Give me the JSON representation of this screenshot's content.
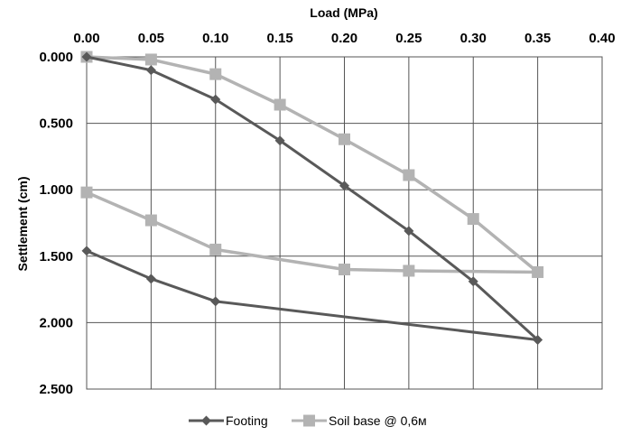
{
  "chart_data": {
    "type": "line",
    "xlabel": "Load (MPa)",
    "ylabel": "Settlement (cm)",
    "x_ticks": [
      "0.00",
      "0.05",
      "0.10",
      "0.15",
      "0.20",
      "0.25",
      "0.30",
      "0.35",
      "0.40"
    ],
    "y_ticks": [
      "0.000",
      "0.500",
      "1.000",
      "1.500",
      "2.000",
      "2.500"
    ],
    "xlim": [
      0,
      0.4
    ],
    "ylim": [
      0,
      2.5
    ],
    "x_axis_position": "top",
    "y_axis_inverted": true,
    "grid": true,
    "legend_position": "bottom",
    "series": [
      {
        "name": "Footing",
        "color": "#595959",
        "marker": "diamond",
        "x": [
          0.0,
          0.05,
          0.1,
          0.15,
          0.2,
          0.25,
          0.3,
          0.35,
          0.1,
          0.05,
          0.0
        ],
        "y": [
          0.0,
          0.1,
          0.32,
          0.63,
          0.97,
          1.31,
          1.69,
          2.13,
          1.84,
          1.67,
          1.46
        ]
      },
      {
        "name": "Soil base @ 0,6м",
        "color": "#b3b3b3",
        "marker": "square",
        "x": [
          0.0,
          0.05,
          0.1,
          0.15,
          0.2,
          0.25,
          0.3,
          0.35,
          0.25,
          0.2,
          0.1,
          0.05,
          0.0
        ],
        "y": [
          0.0,
          0.02,
          0.13,
          0.36,
          0.62,
          0.89,
          1.22,
          1.62,
          1.61,
          1.6,
          1.45,
          1.23,
          1.02
        ]
      }
    ]
  }
}
